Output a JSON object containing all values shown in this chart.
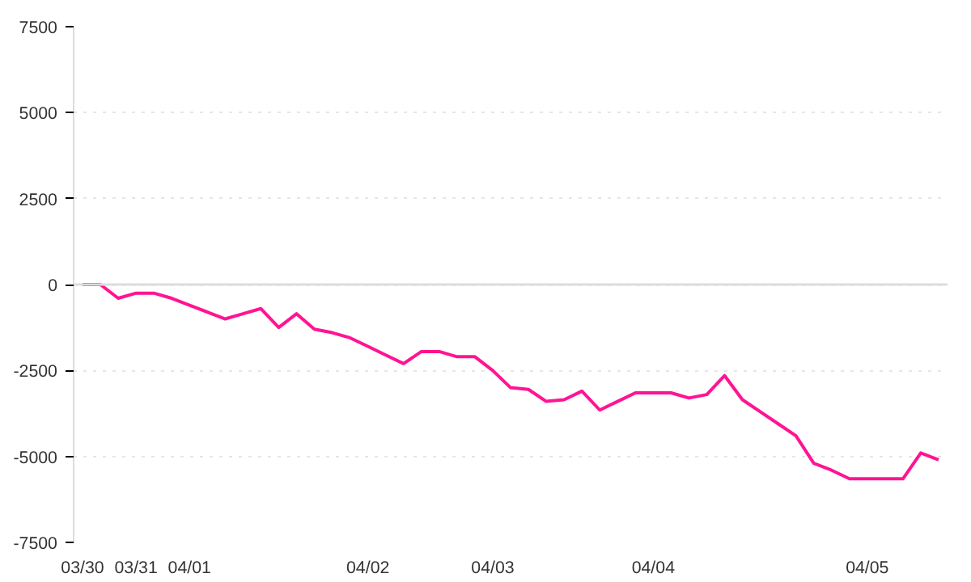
{
  "chart_data": {
    "type": "line",
    "categories": [
      "03/30",
      null,
      null,
      "03/31",
      null,
      null,
      "04/01",
      null,
      null,
      null,
      null,
      null,
      null,
      null,
      null,
      null,
      "04/02",
      null,
      null,
      null,
      null,
      null,
      null,
      "04/03",
      null,
      null,
      null,
      null,
      null,
      null,
      null,
      null,
      "04/04",
      null,
      null,
      null,
      null,
      null,
      null,
      null,
      null,
      null,
      null,
      null,
      "04/05",
      null,
      null,
      null,
      null
    ],
    "series": [
      {
        "color": "#ff1493",
        "values": [
          0,
          0,
          -400,
          -250,
          -250,
          -400,
          -600,
          -800,
          -1000,
          -850,
          -700,
          -1250,
          -850,
          -1300,
          -1400,
          -1550,
          -1800,
          -2050,
          -2300,
          -1950,
          -1950,
          -2100,
          -2100,
          -2500,
          -3000,
          -3050,
          -3400,
          -3350,
          -3100,
          -3650,
          -3400,
          -3150,
          -3150,
          -3150,
          -3300,
          -3200,
          -2650,
          -3350,
          -3700,
          -4050,
          -4400,
          -5200,
          -5400,
          -5650,
          -5650,
          -5650,
          -5650,
          -4900,
          -5100
        ]
      }
    ],
    "ylim": [
      -7500,
      7500
    ],
    "yticks": [
      -7500,
      -5000,
      -2500,
      0,
      2500,
      5000,
      7500
    ],
    "ref_lines": [
      {
        "axis": "y",
        "value": 0,
        "color": "#dddddd",
        "line_style": "solid"
      }
    ],
    "grid": "y",
    "line_style": "solid",
    "marker": "none"
  }
}
